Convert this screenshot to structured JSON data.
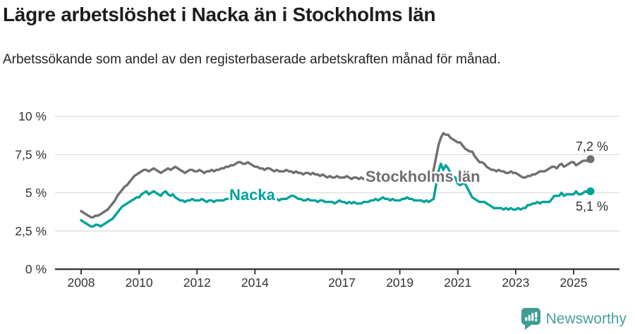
{
  "header": {
    "title": "Lägre arbetslöshet i Nacka än i Stockholms län",
    "subtitle": "Arbetssökande som andel av den registerbaserade arbetskraften månad för månad."
  },
  "footer": {
    "brand": "Newsworthy",
    "logo_icon": "newsworthy-chart-bubble-icon"
  },
  "colors": {
    "title_text": "#1d1d1b",
    "tick_text": "#333333",
    "grid": "#dcdcdc",
    "axis": "#3b3b3b",
    "stockholm": "#6e6e73",
    "nacka": "#00a29a",
    "brand": "#4aa19b",
    "background": "#ffffff"
  },
  "chart_data": {
    "type": "line",
    "title": "Lägre arbetslöshet i Nacka än i Stockholms län",
    "subtitle": "Arbetssökande som andel av den registerbaserade arbetskraften månad för månad.",
    "unit": "%",
    "x_start": "2008-01",
    "x_end": "2025-08",
    "x_frequency": "monthly",
    "x_tick_years": [
      2008,
      2010,
      2012,
      2014,
      2017,
      2019,
      2021,
      2023,
      2025
    ],
    "x_tick_labels": [
      "2008",
      "2010",
      "2012",
      "2014",
      "2017",
      "2019",
      "2021",
      "2023",
      "2025"
    ],
    "y_ticks": [
      0,
      2.5,
      5,
      7.5,
      10
    ],
    "y_tick_labels": [
      "0 %",
      "2,5 %",
      "5 %",
      "7,5 %",
      "10 %"
    ],
    "ylim": [
      0,
      10
    ],
    "grid": "horizontal",
    "legend_position": "inline-labels",
    "series": [
      {
        "id": "stockholms-lan",
        "name": "Stockholms län",
        "color": "#6e6e73",
        "end_label": "7,2 %",
        "end_value": 7.2,
        "values": [
          3.8,
          3.7,
          3.6,
          3.5,
          3.4,
          3.4,
          3.5,
          3.5,
          3.6,
          3.7,
          3.8,
          3.9,
          4.1,
          4.3,
          4.5,
          4.8,
          5.0,
          5.2,
          5.4,
          5.5,
          5.7,
          5.9,
          6.1,
          6.2,
          6.3,
          6.4,
          6.5,
          6.5,
          6.4,
          6.5,
          6.6,
          6.5,
          6.4,
          6.3,
          6.4,
          6.5,
          6.6,
          6.5,
          6.6,
          6.7,
          6.6,
          6.5,
          6.4,
          6.3,
          6.4,
          6.5,
          6.5,
          6.4,
          6.4,
          6.5,
          6.4,
          6.3,
          6.4,
          6.4,
          6.5,
          6.4,
          6.5,
          6.5,
          6.6,
          6.6,
          6.7,
          6.7,
          6.8,
          6.8,
          6.9,
          7.0,
          7.0,
          6.9,
          6.9,
          7.0,
          6.9,
          6.8,
          6.7,
          6.7,
          6.6,
          6.6,
          6.5,
          6.6,
          6.6,
          6.5,
          6.4,
          6.5,
          6.4,
          6.4,
          6.4,
          6.5,
          6.4,
          6.4,
          6.3,
          6.4,
          6.3,
          6.3,
          6.2,
          6.3,
          6.3,
          6.2,
          6.3,
          6.2,
          6.2,
          6.1,
          6.2,
          6.1,
          6.0,
          6.1,
          6.0,
          6.0,
          6.1,
          6.0,
          6.0,
          6.0,
          6.1,
          6.0,
          5.9,
          6.0,
          6.0,
          5.9,
          6.0,
          5.9,
          5.9,
          6.0,
          5.9,
          5.9,
          5.8,
          5.9,
          5.9,
          5.8,
          5.9,
          5.8,
          5.9,
          5.9,
          5.8,
          5.9,
          5.9,
          6.0,
          5.9,
          6.0,
          6.0,
          6.1,
          6.0,
          6.1,
          6.1,
          6.0,
          6.1,
          6.1,
          6.1,
          6.2,
          6.5,
          7.3,
          8.1,
          8.6,
          8.9,
          8.8,
          8.8,
          8.6,
          8.5,
          8.4,
          8.3,
          8.3,
          8.1,
          7.9,
          7.8,
          7.7,
          7.7,
          7.4,
          7.2,
          7.0,
          7.0,
          6.9,
          6.7,
          6.6,
          6.5,
          6.5,
          6.4,
          6.5,
          6.4,
          6.4,
          6.3,
          6.3,
          6.4,
          6.3,
          6.3,
          6.2,
          6.1,
          6.0,
          6.0,
          6.1,
          6.1,
          6.2,
          6.2,
          6.3,
          6.4,
          6.4,
          6.4,
          6.5,
          6.6,
          6.7,
          6.7,
          6.6,
          6.8,
          6.9,
          6.7,
          6.8,
          6.9,
          7.0,
          7.0,
          6.8,
          6.9,
          7.0,
          7.1,
          7.1,
          7.1,
          7.2
        ]
      },
      {
        "id": "nacka",
        "name": "Nacka",
        "color": "#00a29a",
        "end_label": "5,1 %",
        "end_value": 5.1,
        "values": [
          3.2,
          3.1,
          3.0,
          2.9,
          2.8,
          2.8,
          2.9,
          2.9,
          2.8,
          2.9,
          3.0,
          3.1,
          3.2,
          3.3,
          3.5,
          3.7,
          3.9,
          4.1,
          4.2,
          4.3,
          4.4,
          4.5,
          4.6,
          4.7,
          4.7,
          4.9,
          5.0,
          5.1,
          4.9,
          5.0,
          5.1,
          5.0,
          4.9,
          4.8,
          5.0,
          5.1,
          4.9,
          4.8,
          4.9,
          4.7,
          4.6,
          4.5,
          4.5,
          4.4,
          4.5,
          4.5,
          4.6,
          4.5,
          4.5,
          4.5,
          4.6,
          4.5,
          4.4,
          4.5,
          4.5,
          4.4,
          4.5,
          4.5,
          4.5,
          4.5,
          4.6,
          4.6,
          4.7,
          4.6,
          4.7,
          4.7,
          4.8,
          4.7,
          4.8,
          4.8,
          4.8,
          4.8,
          4.8,
          4.8,
          4.7,
          4.7,
          4.6,
          4.7,
          4.6,
          4.6,
          4.5,
          4.6,
          4.5,
          4.6,
          4.6,
          4.6,
          4.7,
          4.8,
          4.8,
          4.7,
          4.6,
          4.6,
          4.5,
          4.5,
          4.6,
          4.5,
          4.5,
          4.5,
          4.4,
          4.5,
          4.5,
          4.4,
          4.4,
          4.4,
          4.4,
          4.3,
          4.4,
          4.5,
          4.4,
          4.4,
          4.3,
          4.4,
          4.3,
          4.4,
          4.3,
          4.3,
          4.3,
          4.4,
          4.4,
          4.4,
          4.5,
          4.5,
          4.6,
          4.5,
          4.6,
          4.7,
          4.6,
          4.6,
          4.5,
          4.6,
          4.5,
          4.5,
          4.5,
          4.6,
          4.6,
          4.7,
          4.6,
          4.6,
          4.5,
          4.5,
          4.5,
          4.5,
          4.4,
          4.5,
          4.4,
          4.5,
          4.6,
          5.5,
          6.4,
          6.9,
          6.5,
          6.8,
          6.6,
          6.3,
          6.1,
          6.0,
          5.6,
          5.5,
          5.6,
          5.6,
          5.3,
          5.0,
          4.7,
          4.6,
          4.5,
          4.4,
          4.4,
          4.4,
          4.3,
          4.2,
          4.1,
          4.0,
          4.0,
          4.0,
          4.0,
          3.9,
          4.0,
          3.9,
          4.0,
          3.9,
          3.9,
          4.0,
          3.9,
          4.0,
          4.0,
          4.2,
          4.2,
          4.3,
          4.3,
          4.4,
          4.3,
          4.4,
          4.4,
          4.4,
          4.4,
          4.6,
          4.8,
          4.8,
          4.8,
          5.0,
          4.8,
          4.9,
          4.9,
          4.9,
          4.9,
          5.1,
          4.9,
          4.9,
          5.0,
          5.1,
          5.0,
          5.1
        ]
      }
    ]
  }
}
